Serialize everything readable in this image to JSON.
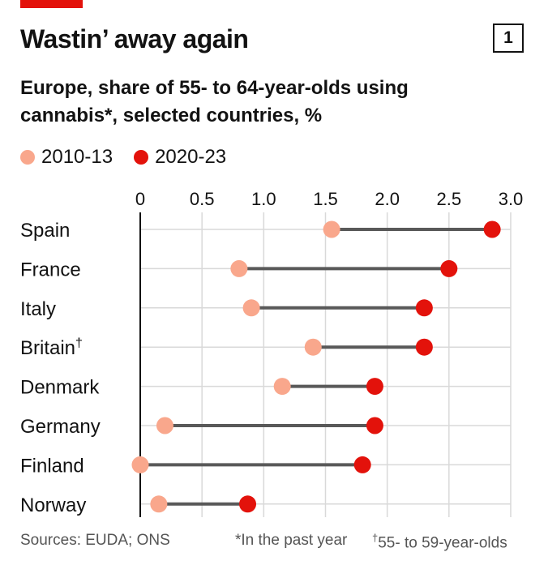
{
  "header": {
    "title": "Wastin’ away again",
    "chart_number": "1",
    "subtitle": "Europe, share of 55- to 64-year-olds using cannabis*, selected countries, %"
  },
  "colors": {
    "accent": "#e3120b",
    "series_2010": "#f9a78c",
    "series_2020": "#e3120b",
    "connector": "#595959",
    "grid": "#d9d9d9"
  },
  "footer": {
    "sources": "Sources: EUDA; ONS",
    "note_asterisk": "*In the past year",
    "note_dagger_mark": "†",
    "note_dagger": "55- to 59-year-olds"
  },
  "chart_data": {
    "type": "dumbbell",
    "xlim": [
      0,
      3.0
    ],
    "x_ticks": [
      "0",
      "0.5",
      "1.0",
      "1.5",
      "2.0",
      "2.5",
      "3.0"
    ],
    "x_tick_values": [
      0,
      0.5,
      1.0,
      1.5,
      2.0,
      2.5,
      3.0
    ],
    "categories": [
      "Spain",
      "France",
      "Italy",
      "Britain",
      "Denmark",
      "Germany",
      "Finland",
      "Norway"
    ],
    "category_marks": [
      "",
      "",
      "",
      "†",
      "",
      "",
      "",
      ""
    ],
    "series": [
      {
        "name": "2010-13",
        "values": [
          1.55,
          0.8,
          0.9,
          1.4,
          1.15,
          0.2,
          0.0,
          0.15
        ]
      },
      {
        "name": "2020-23",
        "values": [
          2.85,
          2.5,
          2.3,
          2.3,
          1.9,
          1.9,
          1.8,
          0.87
        ]
      }
    ],
    "grid": true,
    "legend_position": "top-left"
  }
}
